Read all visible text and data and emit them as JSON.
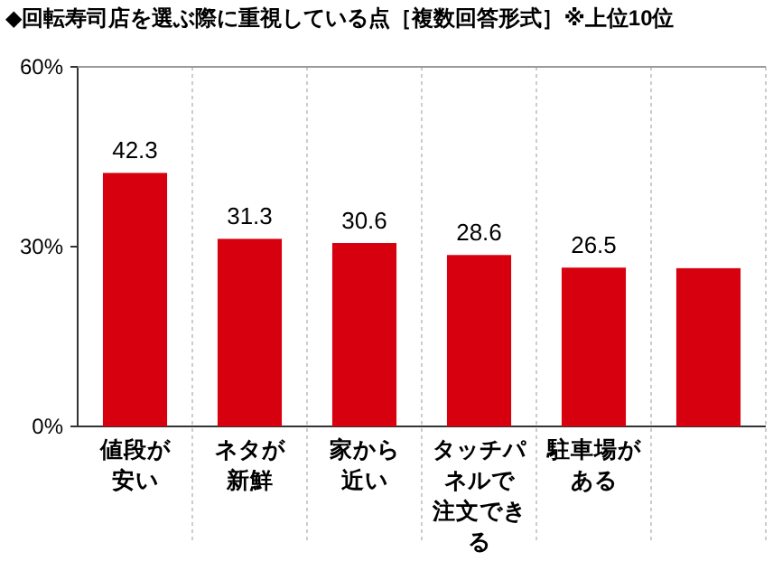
{
  "chart_data": {
    "type": "bar",
    "title": "◆回転寿司店を選ぶ際に重視している点［複数回答形式］※上位10位",
    "categories": [
      "値段が安い",
      "ネタが新鮮",
      "家から近い",
      "タッチパネルで注文できる",
      "駐車場がある",
      null
    ],
    "values": [
      42.3,
      31.3,
      30.6,
      28.6,
      26.5,
      26.4
    ],
    "value_labels": [
      "42.3",
      "31.3",
      "30.6",
      "28.6",
      "26.5",
      null
    ],
    "color": "#d7000f",
    "ylim": [
      0,
      60
    ],
    "yticks": [
      {
        "value": 0,
        "label": "0%"
      },
      {
        "value": 30,
        "label": "30%"
      },
      {
        "value": 60,
        "label": "60%"
      }
    ],
    "grid": false
  }
}
